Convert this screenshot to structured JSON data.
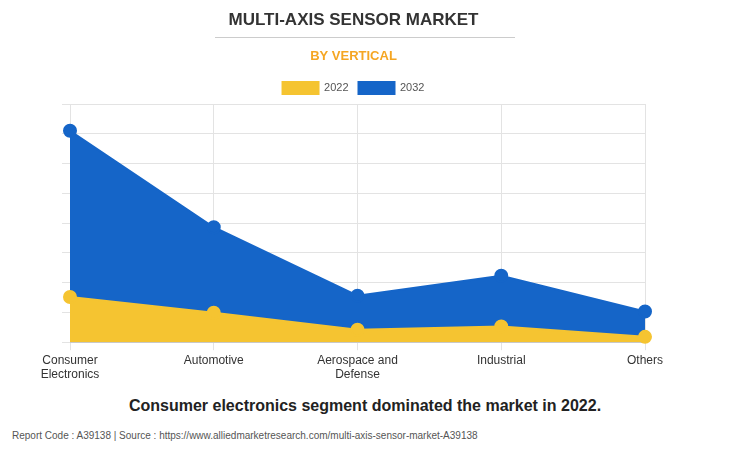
{
  "chart_data": {
    "type": "line",
    "title": "MULTI-AXIS SENSOR MARKET",
    "subtitle": "BY VERTICAL",
    "caption": "Consumer electronics segment dominated the market in 2022.",
    "source": "Report Code : A39138  |  Source : https://www.alliedmarketresearch.com/multi-axis-sensor-market-A39138",
    "categories": [
      "Consumer Electronics",
      "Automotive",
      "Aerospace and Defense",
      "Industrial",
      "Others"
    ],
    "series": [
      {
        "name": "2022",
        "color": "#f5c431",
        "values": [
          1.52,
          0.99,
          0.42,
          0.53,
          0.18
        ]
      },
      {
        "name": "2032",
        "color": "#1565c8",
        "values": [
          7.1,
          3.86,
          1.56,
          2.23,
          1.03
        ]
      }
    ],
    "ylim": [
      0,
      8
    ],
    "yticks": [
      0,
      1,
      2,
      3,
      4,
      5,
      6,
      7,
      8
    ],
    "grid": true,
    "legend": "top",
    "tick_labels": "x",
    "marker": "circle"
  }
}
